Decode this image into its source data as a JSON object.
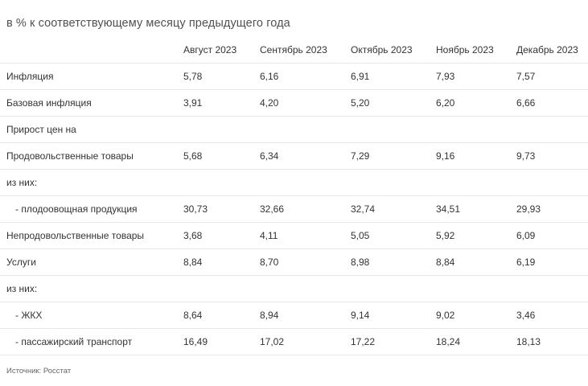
{
  "caption": "в % к соответствующему месяцу предыдущего года",
  "columns": [
    "Август 2023",
    "Сентябрь 2023",
    "Октябрь 2023",
    "Ноябрь 2023",
    "Декабрь 2023"
  ],
  "rows": [
    {
      "label": "Инфляция",
      "values": [
        "5,78",
        "6,16",
        "6,91",
        "7,93",
        "7,57"
      ]
    },
    {
      "label": "Базовая инфляция",
      "values": [
        "3,91",
        "4,20",
        "5,20",
        "6,20",
        "6,66"
      ]
    },
    {
      "label": "Прирост цен на",
      "values": [
        "",
        "",
        "",
        "",
        ""
      ]
    },
    {
      "label": "Продовольственные товары",
      "values": [
        "5,68",
        "6,34",
        "7,29",
        "9,16",
        "9,73"
      ]
    },
    {
      "label": "из них:",
      "values": [
        "",
        "",
        "",
        "",
        ""
      ]
    },
    {
      "label": "- плодоовощная продукция",
      "values": [
        "30,73",
        "32,66",
        "32,74",
        "34,51",
        "29,93"
      ]
    },
    {
      "label": "Непродовольственные товары",
      "values": [
        "3,68",
        "4,11",
        "5,05",
        "5,92",
        "6,09"
      ]
    },
    {
      "label": "Услуги",
      "values": [
        "8,84",
        "8,70",
        "8,98",
        "8,84",
        "6,19"
      ]
    },
    {
      "label": "из них:",
      "values": [
        "",
        "",
        "",
        "",
        ""
      ]
    },
    {
      "label": "- ЖКХ",
      "values": [
        "8,64",
        "8,94",
        "9,14",
        "9,02",
        "3,46"
      ]
    },
    {
      "label": "- пассажирский транспорт",
      "values": [
        "16,49",
        "17,02",
        "17,22",
        "18,24",
        "18,13"
      ]
    }
  ],
  "source": "Источник: Росстат"
}
